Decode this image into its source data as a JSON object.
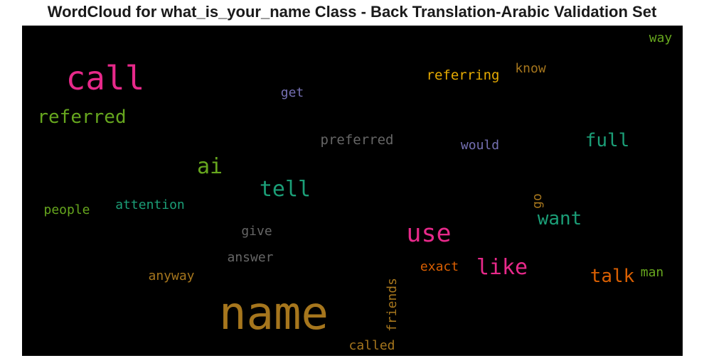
{
  "chart_data": {
    "type": "wordcloud",
    "title": "WordCloud for what_is_your_name Class - Back Translation-Arabic Validation Set",
    "background": "#000000",
    "words": [
      {
        "text": "name",
        "color": "#a6761d"
      },
      {
        "text": "call",
        "color": "#e7298a"
      },
      {
        "text": "use",
        "color": "#e7298a"
      },
      {
        "text": "like",
        "color": "#e7298a"
      },
      {
        "text": "tell",
        "color": "#1b9e77"
      },
      {
        "text": "referred",
        "color": "#66a61e"
      },
      {
        "text": "ai",
        "color": "#66a61e"
      },
      {
        "text": "full",
        "color": "#1b9e77"
      },
      {
        "text": "want",
        "color": "#1b9e77"
      },
      {
        "text": "talk",
        "color": "#d95f02"
      },
      {
        "text": "referring",
        "color": "#e6ab02"
      },
      {
        "text": "preferred",
        "color": "#666666"
      },
      {
        "text": "would",
        "color": "#7570b3"
      },
      {
        "text": "get",
        "color": "#7570b3"
      },
      {
        "text": "know",
        "color": "#a6761d"
      },
      {
        "text": "way",
        "color": "#66a61e"
      },
      {
        "text": "people",
        "color": "#66a61e"
      },
      {
        "text": "attention",
        "color": "#1b9e77"
      },
      {
        "text": "give",
        "color": "#666666"
      },
      {
        "text": "answer",
        "color": "#666666"
      },
      {
        "text": "anyway",
        "color": "#a6761d"
      },
      {
        "text": "exact",
        "color": "#d95f02"
      },
      {
        "text": "friends",
        "color": "#a6761d"
      },
      {
        "text": "called",
        "color": "#a6761d"
      },
      {
        "text": "go",
        "color": "#a6761d"
      },
      {
        "text": "man",
        "color": "#66a61e"
      }
    ]
  }
}
